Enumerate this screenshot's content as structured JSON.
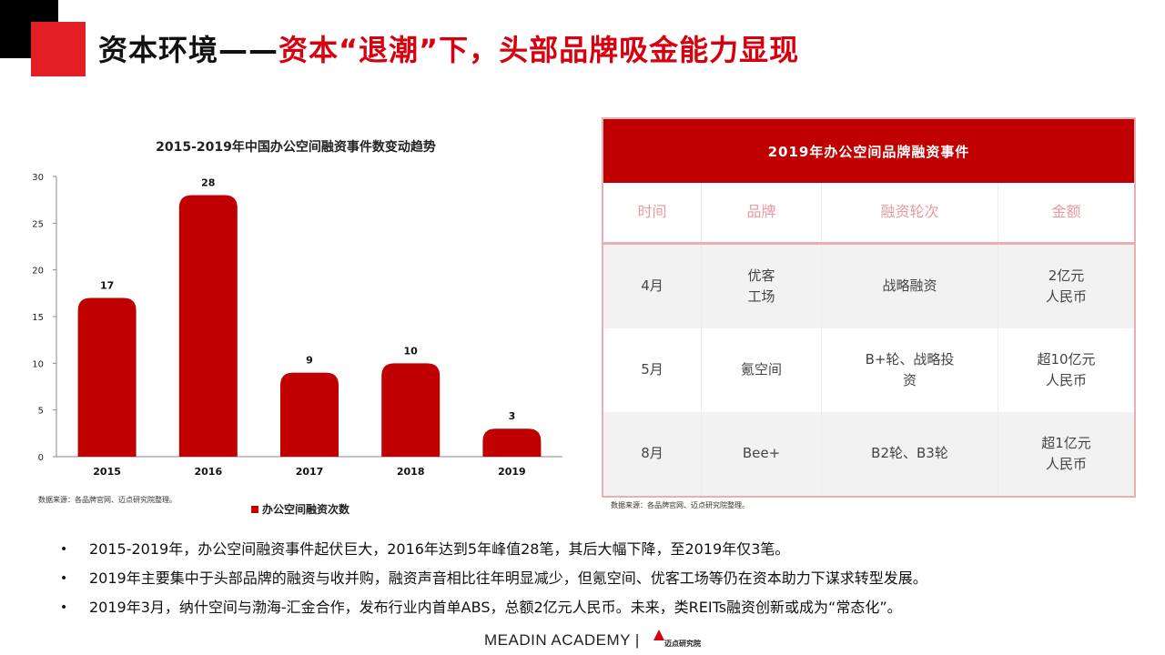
{
  "title": {
    "black": "资本环境——",
    "red": "资本“退潮”下，头部品牌吸金能力显现"
  },
  "colors": {
    "accent_red": "#d7000f",
    "bar_red": "#c00000",
    "corner_black": "#000000",
    "corner_red": "#e31e25"
  },
  "chart_data": {
    "type": "bar",
    "title": "2015-2019年中国办公空间融资事件数变动趋势",
    "categories": [
      "2015",
      "2016",
      "2017",
      "2018",
      "2019"
    ],
    "series": [
      {
        "name": "办公空间融资次数",
        "values": [
          17,
          28,
          9,
          10,
          3
        ]
      }
    ],
    "xlabel": "",
    "ylabel": "",
    "ylim": [
      0,
      30
    ],
    "yticks": [
      0,
      5,
      10,
      15,
      20,
      25,
      30
    ],
    "data_labels": true,
    "legend_position": "bottom",
    "grid": false
  },
  "chart_source": "数据来源：各品牌官网、迈点研究院整理。",
  "table": {
    "title": "2019年办公空间品牌融资事件",
    "headers": [
      "时间",
      "品牌",
      "融资轮次",
      "金额"
    ],
    "rows": [
      [
        "4月",
        "优客\n工场",
        "战略融资",
        "2亿元\n人民币"
      ],
      [
        "5月",
        "氪空间",
        "B+轮、战略投\n资",
        "超10亿元\n人民币"
      ],
      [
        "8月",
        "Bee+",
        "B2轮、B3轮",
        "超1亿元\n人民币"
      ]
    ],
    "source": "数据来源：各品牌官网、迈点研究院整理。"
  },
  "bullets": [
    "2015-2019年，办公空间融资事件起伏巨大，2016年达到5年峰值28笔，其后大幅下降，至2019年仅3笔。",
    "2019年主要集中于头部品牌的融资与收并购，融资声音相比往年明显减少，但氪空间、优客工场等仍在资本助力下谋求转型发展。",
    "2019年3月，纳什空间与渤海-汇金合作，发布行业内首单ABS，总额2亿元人民币。未来，类REITs融资创新或成为“常态化”。"
  ],
  "footer": {
    "academy": "MEADIN ACADEMY |",
    "logo_text": "迈点研究院"
  }
}
